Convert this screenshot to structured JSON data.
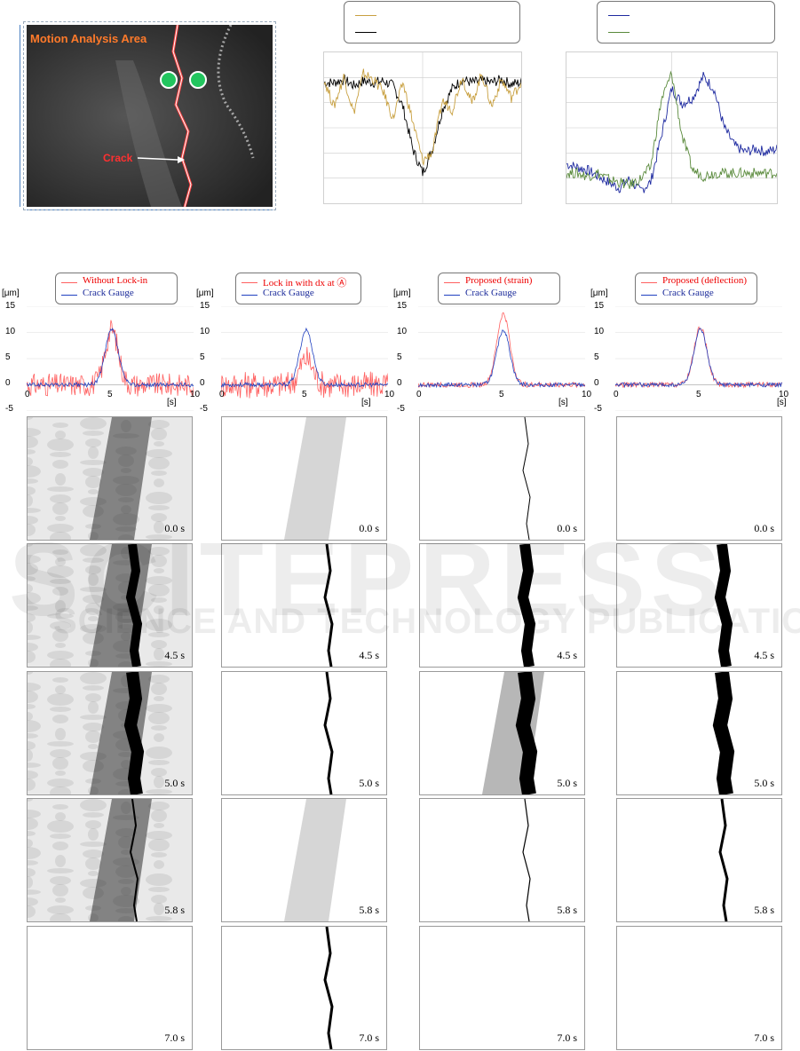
{
  "top_image": {
    "area_label": "Motion Analysis Area",
    "crack_label": "Crack"
  },
  "chart_data": [
    {
      "type": "line",
      "series": [
        {
          "values": [
            0,
            0,
            0.1,
            -0.1,
            0.05,
            0,
            0.05,
            -0.1,
            -0.8,
            -2.2,
            -3,
            -2.2,
            -0.9,
            -0.2,
            0.1,
            0,
            0.05,
            0,
            0.1,
            -0.05,
            0
          ]
        },
        {
          "values": [
            0.1,
            -0.8,
            0.2,
            -1,
            0.3,
            0.1,
            -0.3,
            -1.2,
            0,
            -1.3,
            -2.6,
            -2.3,
            -0.6,
            -0.9,
            0.2,
            -0.7,
            0.3,
            -0.8,
            0.1,
            -0.5,
            0
          ]
        }
      ],
      "ylim": [
        -4,
        1
      ],
      "colors": [
        "#000000",
        "#c8a040"
      ]
    },
    {
      "type": "line",
      "series": [
        {
          "values": [
            0.3,
            0.2,
            0.1,
            -0.1,
            -0.3,
            -0.5,
            -0.2,
            -0.6,
            -0.3,
            1.2,
            2.8,
            2.3,
            2.5,
            3.2,
            2.8,
            1.5,
            0.9,
            0.7,
            0.8,
            0.7,
            0.8
          ]
        },
        {
          "values": [
            0,
            0,
            -0.1,
            0,
            -0.2,
            -0.3,
            -0.4,
            -0.2,
            0.2,
            2.4,
            3.3,
            1.2,
            0.1,
            -0.1,
            0,
            0,
            0,
            0,
            0,
            0,
            0
          ]
        }
      ],
      "ylim": [
        -1,
        4
      ],
      "colors": [
        "#1e2aa0",
        "#5a8a3c"
      ]
    },
    {
      "type": "line",
      "title": "Without Lock-in",
      "x": [
        0,
        10
      ],
      "xlim": [
        0,
        10
      ],
      "ylim": [
        -5,
        15
      ],
      "series": [
        {
          "name": "Without Lock-in",
          "color": "#ff6060",
          "noise": 2.2,
          "peak": 10.5
        },
        {
          "name": "Crack Gauge",
          "color": "#2040c0",
          "noise": 0.4,
          "peak": 10.5
        }
      ]
    },
    {
      "type": "line",
      "title": "Lock in with dx at A",
      "x": [
        0,
        10
      ],
      "xlim": [
        0,
        10
      ],
      "ylim": [
        -5,
        15
      ],
      "series": [
        {
          "name": "Lock in with dx at Ⓐ",
          "color": "#ff6060",
          "noise": 2.6,
          "peak": 5
        },
        {
          "name": "Crack Gauge",
          "color": "#2040c0",
          "noise": 0.4,
          "peak": 10.5
        }
      ]
    },
    {
      "type": "line",
      "title": "Proposed (strain)",
      "x": [
        0,
        10
      ],
      "xlim": [
        0,
        10
      ],
      "ylim": [
        -5,
        15
      ],
      "series": [
        {
          "name": "Proposed (strain)",
          "color": "#ff6060",
          "noise": 0.5,
          "peak": 13.5
        },
        {
          "name": "Crack Gauge",
          "color": "#2040c0",
          "noise": 0.4,
          "peak": 10.5
        }
      ]
    },
    {
      "type": "line",
      "title": "Proposed (deflection)",
      "x": [
        0,
        10
      ],
      "xlim": [
        0,
        10
      ],
      "ylim": [
        -5,
        15
      ],
      "series": [
        {
          "name": "Proposed (deflection)",
          "color": "#ff6060",
          "noise": 0.5,
          "peak": 11
        },
        {
          "name": "Crack Gauge",
          "color": "#2040c0",
          "noise": 0.4,
          "peak": 10.5
        }
      ]
    }
  ],
  "charts": {
    "unit_y": "[μm]",
    "unit_x": "[s]",
    "y_ticks": [
      "15",
      "10",
      "5",
      "0",
      "-5"
    ],
    "x_ticks": [
      "0",
      "5",
      "10"
    ],
    "legends": [
      {
        "l1": "Without Lock-in",
        "l2": "Crack Gauge"
      },
      {
        "l1": "Lock in with dx at Ⓐ",
        "l2": "Crack Gauge"
      },
      {
        "l1": "Proposed (strain)",
        "l2": "Crack Gauge"
      },
      {
        "l1": "Proposed (deflection)",
        "l2": "Crack Gauge"
      }
    ]
  },
  "panels": {
    "times": [
      "0.0 s",
      "4.5 s",
      "5.0 s",
      "5.8 s",
      "7.0 s"
    ]
  },
  "watermark": {
    "line1": "SCITEPRESS",
    "line2": "SCIENCE AND TECHNOLOGY PUBLICATIONS"
  }
}
